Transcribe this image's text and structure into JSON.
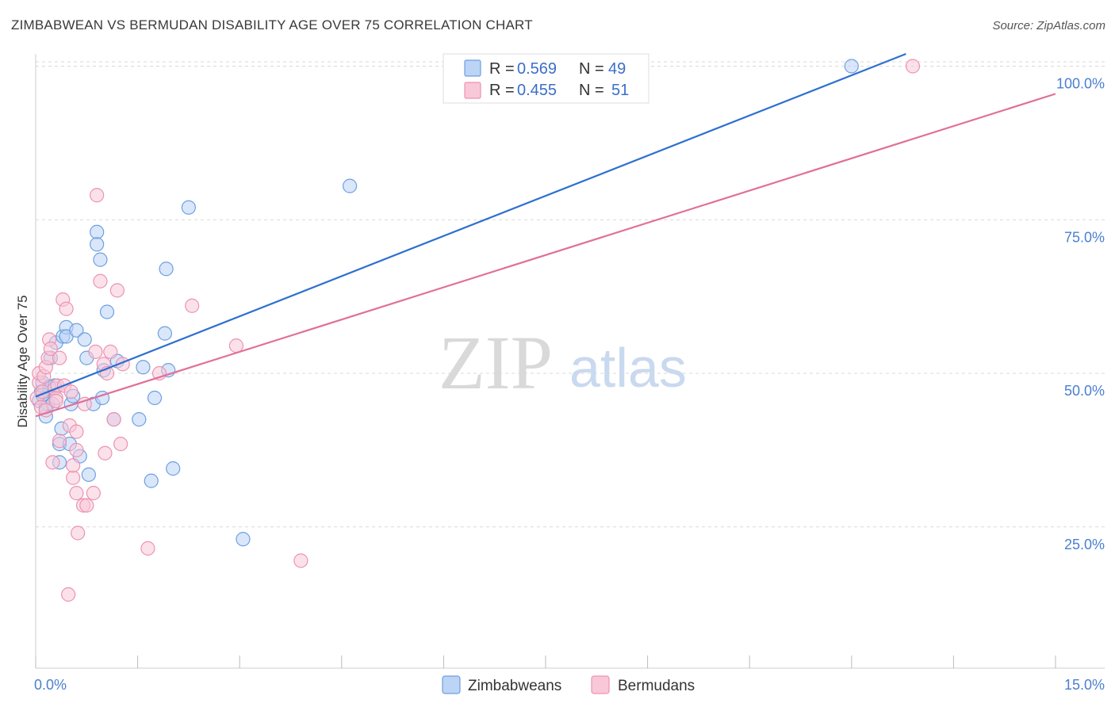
{
  "title": "ZIMBABWEAN VS BERMUDAN DISABILITY AGE OVER 75 CORRELATION CHART",
  "source": "Source: ZipAtlas.com",
  "watermark": {
    "zip": "ZIP",
    "atlas": "atlas"
  },
  "colors": {
    "zim_fill": "#bcd4f5",
    "zim_stroke": "#6d9fe0",
    "zim_line": "#2e6fd0",
    "ber_fill": "#f8c8d8",
    "ber_stroke": "#ec93b0",
    "ber_line": "#e0709a",
    "grid": "#d8d8d8",
    "tick_text": "#4a7fd0"
  },
  "legend": {
    "zim": {
      "r_label": "R =",
      "r_value": "0.569",
      "n_label": "N =",
      "n_value": "49"
    },
    "ber": {
      "r_label": "R =",
      "r_value": "0.455",
      "n_label": "N =",
      "n_value": "51"
    }
  },
  "bottom_legend": {
    "zim": "Zimbabweans",
    "ber": "Bermudans"
  },
  "chart_data": {
    "type": "scatter",
    "title": "ZIMBABWEAN VS BERMUDAN DISABILITY AGE OVER 75 CORRELATION CHART",
    "xlabel": "",
    "ylabel": "Disability Age Over 75",
    "xlim": [
      0,
      15
    ],
    "ylim": [
      2,
      102
    ],
    "x_tick_labels": [
      "0.0%",
      "15.0%"
    ],
    "y_ticks": [
      25,
      50,
      75,
      100
    ],
    "y_tick_labels": [
      "25.0%",
      "50.0%",
      "75.0%",
      "100.0%"
    ],
    "series": [
      {
        "name": "Zimbabweans",
        "r": 0.569,
        "n": 49,
        "trend": {
          "x0": 0.0,
          "y0": 46.2,
          "x1": 12.8,
          "y1": 102
        },
        "points": [
          [
            0.05,
            45.5
          ],
          [
            0.08,
            47.0
          ],
          [
            0.1,
            48.5
          ],
          [
            0.12,
            46.0
          ],
          [
            0.15,
            44.5
          ],
          [
            0.15,
            43.0
          ],
          [
            0.18,
            45.0
          ],
          [
            0.2,
            47.5
          ],
          [
            0.22,
            52.5
          ],
          [
            0.25,
            45.0
          ],
          [
            0.28,
            48.0
          ],
          [
            0.3,
            55.0
          ],
          [
            0.35,
            38.5
          ],
          [
            0.35,
            35.5
          ],
          [
            0.38,
            41.0
          ],
          [
            0.4,
            56.0
          ],
          [
            0.45,
            57.5
          ],
          [
            0.45,
            56.0
          ],
          [
            0.5,
            38.5
          ],
          [
            0.52,
            45.0
          ],
          [
            0.6,
            57.0
          ],
          [
            0.65,
            36.5
          ],
          [
            0.72,
            55.5
          ],
          [
            0.75,
            52.5
          ],
          [
            0.78,
            33.5
          ],
          [
            0.85,
            45.0
          ],
          [
            0.9,
            73.0
          ],
          [
            0.9,
            71.0
          ],
          [
            0.95,
            68.5
          ],
          [
            0.98,
            46.0
          ],
          [
            1.0,
            50.5
          ],
          [
            1.05,
            60.0
          ],
          [
            1.15,
            42.5
          ],
          [
            1.2,
            52.0
          ],
          [
            1.52,
            42.5
          ],
          [
            1.58,
            51.0
          ],
          [
            1.7,
            32.5
          ],
          [
            1.75,
            46.0
          ],
          [
            1.9,
            56.5
          ],
          [
            1.92,
            67.0
          ],
          [
            1.95,
            50.5
          ],
          [
            2.02,
            34.5
          ],
          [
            2.25,
            77.0
          ],
          [
            3.05,
            23.0
          ],
          [
            4.62,
            80.5
          ],
          [
            12.0,
            100.0
          ],
          [
            0.2,
            47.8
          ],
          [
            0.55,
            46.3
          ],
          [
            0.1,
            46.5
          ]
        ]
      },
      {
        "name": "Bermudans",
        "r": 0.455,
        "n": 51,
        "trend": {
          "x0": 0.0,
          "y0": 43.0,
          "x1": 15.0,
          "y1": 95.5
        },
        "points": [
          [
            0.02,
            46.0
          ],
          [
            0.05,
            48.5
          ],
          [
            0.05,
            50.0
          ],
          [
            0.08,
            44.5
          ],
          [
            0.1,
            47.0
          ],
          [
            0.12,
            49.5
          ],
          [
            0.15,
            51.0
          ],
          [
            0.18,
            52.5
          ],
          [
            0.2,
            55.5
          ],
          [
            0.22,
            54.0
          ],
          [
            0.25,
            35.5
          ],
          [
            0.28,
            47.5
          ],
          [
            0.3,
            46.0
          ],
          [
            0.32,
            48.0
          ],
          [
            0.35,
            52.5
          ],
          [
            0.35,
            39.0
          ],
          [
            0.4,
            62.0
          ],
          [
            0.42,
            48.0
          ],
          [
            0.45,
            60.5
          ],
          [
            0.48,
            14.0
          ],
          [
            0.5,
            41.5
          ],
          [
            0.52,
            47.0
          ],
          [
            0.55,
            33.0
          ],
          [
            0.55,
            35.0
          ],
          [
            0.6,
            37.5
          ],
          [
            0.6,
            40.5
          ],
          [
            0.6,
            30.5
          ],
          [
            0.62,
            24.0
          ],
          [
            0.7,
            28.5
          ],
          [
            0.72,
            45.0
          ],
          [
            0.75,
            28.5
          ],
          [
            0.85,
            30.5
          ],
          [
            0.88,
            53.5
          ],
          [
            0.9,
            79.0
          ],
          [
            0.95,
            65.0
          ],
          [
            1.0,
            51.5
          ],
          [
            1.02,
            37.0
          ],
          [
            1.05,
            50.0
          ],
          [
            1.1,
            53.5
          ],
          [
            1.15,
            42.5
          ],
          [
            1.2,
            63.5
          ],
          [
            1.25,
            38.5
          ],
          [
            1.28,
            51.5
          ],
          [
            1.65,
            21.5
          ],
          [
            1.82,
            50.0
          ],
          [
            2.3,
            61.0
          ],
          [
            2.95,
            54.5
          ],
          [
            3.9,
            19.5
          ],
          [
            12.9,
            100.0
          ],
          [
            0.3,
            45.5
          ],
          [
            0.15,
            44.0
          ]
        ]
      }
    ]
  }
}
